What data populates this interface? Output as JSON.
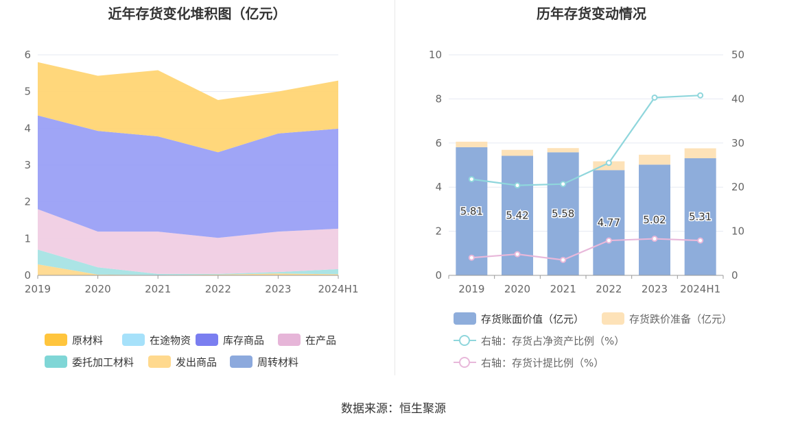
{
  "left_chart": {
    "title": "近年存货变化堆积图（亿元）",
    "chart_data": {
      "type": "area",
      "stacked": true,
      "categories": [
        "2019",
        "2020",
        "2021",
        "2022",
        "2023",
        "2024H1"
      ],
      "ylim": [
        0,
        6
      ],
      "y_ticks": [
        "0",
        "1",
        "2",
        "3",
        "4",
        "5",
        "6"
      ],
      "grid": true,
      "legend_position": "bottom",
      "series": [
        {
          "name": "发出商品",
          "color": "#ffd98e",
          "values": [
            0.3,
            0.02,
            0.01,
            0.02,
            0.05,
            0.03
          ]
        },
        {
          "name": "委托加工材料",
          "color": "#a6e3e4",
          "values": [
            0.4,
            0.2,
            0.03,
            0.02,
            0.04,
            0.14
          ]
        },
        {
          "name": "在产品",
          "color": "#f0cde3",
          "values": [
            1.1,
            0.97,
            1.15,
            0.98,
            1.1,
            1.1
          ]
        },
        {
          "name": "库存商品",
          "color": "#9aa0f5",
          "values": [
            2.55,
            2.74,
            2.59,
            2.33,
            2.67,
            2.72
          ]
        },
        {
          "name": "原材料",
          "color": "#ffd574",
          "values": [
            1.45,
            1.5,
            1.8,
            1.42,
            1.14,
            1.31
          ]
        }
      ],
      "legend": [
        {
          "name": "原材料",
          "color": "#ffc53d"
        },
        {
          "name": "在途物资",
          "color": "#a6e1fa"
        },
        {
          "name": "库存商品",
          "color": "#7a7ef0"
        },
        {
          "name": "在产品",
          "color": "#e6b5d8"
        },
        {
          "name": "委托加工材料",
          "color": "#7fd6d6"
        },
        {
          "name": "发出商品",
          "color": "#ffd98e"
        },
        {
          "name": "周转材料",
          "color": "#8ca9dd"
        }
      ]
    }
  },
  "right_chart": {
    "title": "历年存货变动情况",
    "chart_data": {
      "type": "bar",
      "categories": [
        "2019",
        "2020",
        "2021",
        "2022",
        "2023",
        "2024H1"
      ],
      "ylim": [
        0,
        10
      ],
      "y_ticks": [
        "0",
        "2",
        "4",
        "6",
        "8",
        "10"
      ],
      "y2lim": [
        0,
        50
      ],
      "y2_ticks": [
        "0",
        "10",
        "20",
        "30",
        "40",
        "50"
      ],
      "grid": true,
      "legend_position": "bottom",
      "series": [
        {
          "name": "存货账面价值（亿元）",
          "color": "#8eaddb",
          "axis": "left",
          "kind": "bar",
          "stack": "a",
          "values": [
            5.81,
            5.42,
            5.58,
            4.77,
            5.02,
            5.31
          ],
          "labels": [
            "5.81",
            "5.42",
            "5.58",
            "4.77",
            "5.02",
            "5.31"
          ]
        },
        {
          "name": "存货跌价准备（亿元）",
          "color": "#fde2b8",
          "axis": "left",
          "kind": "bar",
          "stack": "a",
          "values": [
            0.25,
            0.27,
            0.19,
            0.4,
            0.45,
            0.45
          ]
        },
        {
          "name": "右轴：存货占净资产比例（%）",
          "color": "#8fd6dc",
          "axis": "right",
          "kind": "line",
          "values": [
            21.8,
            20.4,
            20.7,
            25.5,
            40.3,
            40.8
          ]
        },
        {
          "name": "右轴：存货计提比例（%）",
          "color": "#e8b8da",
          "axis": "right",
          "kind": "line",
          "values": [
            4.0,
            4.8,
            3.5,
            7.9,
            8.3,
            7.9
          ]
        }
      ]
    }
  },
  "footer": {
    "source": "数据来源：恒生聚源"
  }
}
